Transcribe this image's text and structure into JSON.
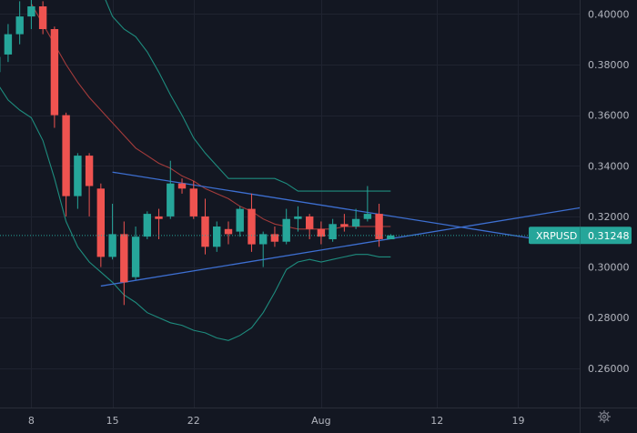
{
  "chart_data": {
    "type": "candlestick",
    "symbol": "XRPUSD",
    "last_price": "0.31248",
    "last_price_value": 0.31248,
    "y_ticks": [
      "0.40000",
      "0.38000",
      "0.36000",
      "0.34000",
      "0.32000",
      "0.30000",
      "0.28000",
      "0.26000"
    ],
    "y_tick_values": [
      0.4,
      0.38,
      0.36,
      0.34,
      0.32,
      0.3,
      0.28,
      0.26
    ],
    "ylim": [
      0.2445,
      0.4055
    ],
    "x_ticks": [
      "8",
      "15",
      "22",
      "Aug",
      "12",
      "19"
    ],
    "x_tick_days": [
      8,
      15,
      22,
      33,
      43,
      50
    ],
    "xlim": [
      5.3,
      55.3
    ],
    "colors": {
      "background": "#131722",
      "grid": "#1f2330",
      "up": "#26a69a",
      "down": "#ef5350",
      "bands": "#1e8c7e",
      "basis": "#a33b3b",
      "trendlines": "#3d6fd1",
      "price_line": "#26a69a",
      "axis_text": "#b2b5be"
    },
    "candles": [
      {
        "day": 5,
        "o": 0.377,
        "h": 0.384,
        "l": 0.374,
        "c": 0.383
      },
      {
        "day": 6,
        "o": 0.384,
        "h": 0.396,
        "l": 0.381,
        "c": 0.392
      },
      {
        "day": 7,
        "o": 0.392,
        "h": 0.405,
        "l": 0.388,
        "c": 0.399
      },
      {
        "day": 8,
        "o": 0.399,
        "h": 0.407,
        "l": 0.394,
        "c": 0.403
      },
      {
        "day": 9,
        "o": 0.403,
        "h": 0.405,
        "l": 0.392,
        "c": 0.394
      },
      {
        "day": 10,
        "o": 0.394,
        "h": 0.395,
        "l": 0.355,
        "c": 0.36
      },
      {
        "day": 11,
        "o": 0.36,
        "h": 0.361,
        "l": 0.32,
        "c": 0.328
      },
      {
        "day": 12,
        "o": 0.328,
        "h": 0.345,
        "l": 0.323,
        "c": 0.344
      },
      {
        "day": 13,
        "o": 0.344,
        "h": 0.345,
        "l": 0.32,
        "c": 0.332
      },
      {
        "day": 14,
        "o": 0.331,
        "h": 0.333,
        "l": 0.3,
        "c": 0.304
      },
      {
        "day": 15,
        "o": 0.304,
        "h": 0.325,
        "l": 0.303,
        "c": 0.313
      },
      {
        "day": 16,
        "o": 0.313,
        "h": 0.318,
        "l": 0.285,
        "c": 0.294
      },
      {
        "day": 17,
        "o": 0.296,
        "h": 0.316,
        "l": 0.295,
        "c": 0.312
      },
      {
        "day": 18,
        "o": 0.312,
        "h": 0.322,
        "l": 0.311,
        "c": 0.321
      },
      {
        "day": 19,
        "o": 0.32,
        "h": 0.323,
        "l": 0.311,
        "c": 0.319
      },
      {
        "day": 20,
        "o": 0.32,
        "h": 0.342,
        "l": 0.319,
        "c": 0.333
      },
      {
        "day": 21,
        "o": 0.333,
        "h": 0.335,
        "l": 0.329,
        "c": 0.331
      },
      {
        "day": 22,
        "o": 0.331,
        "h": 0.334,
        "l": 0.319,
        "c": 0.32
      },
      {
        "day": 23,
        "o": 0.32,
        "h": 0.327,
        "l": 0.305,
        "c": 0.308
      },
      {
        "day": 24,
        "o": 0.308,
        "h": 0.318,
        "l": 0.306,
        "c": 0.316
      },
      {
        "day": 25,
        "o": 0.315,
        "h": 0.318,
        "l": 0.309,
        "c": 0.313
      },
      {
        "day": 26,
        "o": 0.314,
        "h": 0.324,
        "l": 0.312,
        "c": 0.323
      },
      {
        "day": 27,
        "o": 0.323,
        "h": 0.329,
        "l": 0.306,
        "c": 0.309
      },
      {
        "day": 28,
        "o": 0.309,
        "h": 0.314,
        "l": 0.3,
        "c": 0.313
      },
      {
        "day": 29,
        "o": 0.313,
        "h": 0.316,
        "l": 0.308,
        "c": 0.31
      },
      {
        "day": 30,
        "o": 0.31,
        "h": 0.323,
        "l": 0.309,
        "c": 0.319
      },
      {
        "day": 31,
        "o": 0.319,
        "h": 0.324,
        "l": 0.314,
        "c": 0.32
      },
      {
        "day": 32,
        "o": 0.32,
        "h": 0.321,
        "l": 0.311,
        "c": 0.315
      },
      {
        "day": 33,
        "o": 0.315,
        "h": 0.318,
        "l": 0.309,
        "c": 0.312
      },
      {
        "day": 34,
        "o": 0.311,
        "h": 0.319,
        "l": 0.31,
        "c": 0.317
      },
      {
        "day": 35,
        "o": 0.317,
        "h": 0.321,
        "l": 0.314,
        "c": 0.316
      },
      {
        "day": 36,
        "o": 0.316,
        "h": 0.323,
        "l": 0.315,
        "c": 0.319
      },
      {
        "day": 37,
        "o": 0.319,
        "h": 0.332,
        "l": 0.318,
        "c": 0.321
      },
      {
        "day": 38,
        "o": 0.321,
        "h": 0.325,
        "l": 0.308,
        "c": 0.311
      },
      {
        "day": 39,
        "o": 0.311,
        "h": 0.313,
        "l": 0.311,
        "c": 0.3125
      }
    ],
    "upper_band": [
      [
        11,
        0.444
      ],
      [
        13,
        0.42
      ],
      [
        14,
        0.41
      ],
      [
        15,
        0.399
      ],
      [
        16,
        0.394
      ],
      [
        17,
        0.391
      ],
      [
        18,
        0.385
      ],
      [
        19,
        0.377
      ],
      [
        20,
        0.368
      ],
      [
        21,
        0.36
      ],
      [
        22,
        0.351
      ],
      [
        23,
        0.345
      ],
      [
        24,
        0.34
      ],
      [
        25,
        0.335
      ],
      [
        26,
        0.335
      ],
      [
        27,
        0.335
      ],
      [
        28,
        0.335
      ],
      [
        29,
        0.335
      ],
      [
        30,
        0.333
      ],
      [
        31,
        0.33
      ],
      [
        32,
        0.33
      ],
      [
        33,
        0.33
      ],
      [
        34,
        0.33
      ],
      [
        35,
        0.33
      ],
      [
        36,
        0.33
      ],
      [
        37,
        0.33
      ],
      [
        38,
        0.33
      ],
      [
        39,
        0.33
      ]
    ],
    "lower_band": [
      [
        5,
        0.373
      ],
      [
        6,
        0.366
      ],
      [
        7,
        0.362
      ],
      [
        8,
        0.359
      ],
      [
        9,
        0.35
      ],
      [
        10,
        0.335
      ],
      [
        11,
        0.318
      ],
      [
        12,
        0.308
      ],
      [
        13,
        0.302
      ],
      [
        14,
        0.298
      ],
      [
        15,
        0.294
      ],
      [
        16,
        0.289
      ],
      [
        17,
        0.286
      ],
      [
        18,
        0.282
      ],
      [
        19,
        0.28
      ],
      [
        20,
        0.278
      ],
      [
        21,
        0.277
      ],
      [
        22,
        0.275
      ],
      [
        23,
        0.274
      ],
      [
        24,
        0.272
      ],
      [
        25,
        0.271
      ],
      [
        26,
        0.273
      ],
      [
        27,
        0.276
      ],
      [
        28,
        0.282
      ],
      [
        29,
        0.29
      ],
      [
        30,
        0.299
      ],
      [
        31,
        0.302
      ],
      [
        32,
        0.303
      ],
      [
        33,
        0.302
      ],
      [
        34,
        0.303
      ],
      [
        35,
        0.304
      ],
      [
        36,
        0.305
      ],
      [
        37,
        0.305
      ],
      [
        38,
        0.304
      ],
      [
        39,
        0.304
      ]
    ],
    "basis": [
      [
        8,
        0.404
      ],
      [
        9,
        0.396
      ],
      [
        10,
        0.388
      ],
      [
        11,
        0.38
      ],
      [
        12,
        0.373
      ],
      [
        13,
        0.367
      ],
      [
        14,
        0.362
      ],
      [
        15,
        0.357
      ],
      [
        16,
        0.352
      ],
      [
        17,
        0.347
      ],
      [
        18,
        0.344
      ],
      [
        19,
        0.341
      ],
      [
        20,
        0.339
      ],
      [
        21,
        0.336
      ],
      [
        22,
        0.334
      ],
      [
        23,
        0.331
      ],
      [
        24,
        0.329
      ],
      [
        25,
        0.327
      ],
      [
        26,
        0.324
      ],
      [
        27,
        0.322
      ],
      [
        28,
        0.319
      ],
      [
        29,
        0.317
      ],
      [
        30,
        0.316
      ],
      [
        31,
        0.315
      ],
      [
        32,
        0.315
      ],
      [
        33,
        0.315
      ],
      [
        34,
        0.315
      ],
      [
        35,
        0.316
      ],
      [
        36,
        0.316
      ],
      [
        37,
        0.316
      ],
      [
        38,
        0.316
      ],
      [
        39,
        0.316
      ]
    ],
    "trendlines": [
      {
        "name": "upper-trendline",
        "points": [
          [
            15,
            0.3375
          ],
          [
            52.6,
            0.3103
          ]
        ]
      },
      {
        "name": "lower-trendline",
        "points": [
          [
            14,
            0.2925
          ],
          [
            55.3,
            0.3234
          ]
        ]
      }
    ],
    "settings_icon": "gear-icon"
  }
}
